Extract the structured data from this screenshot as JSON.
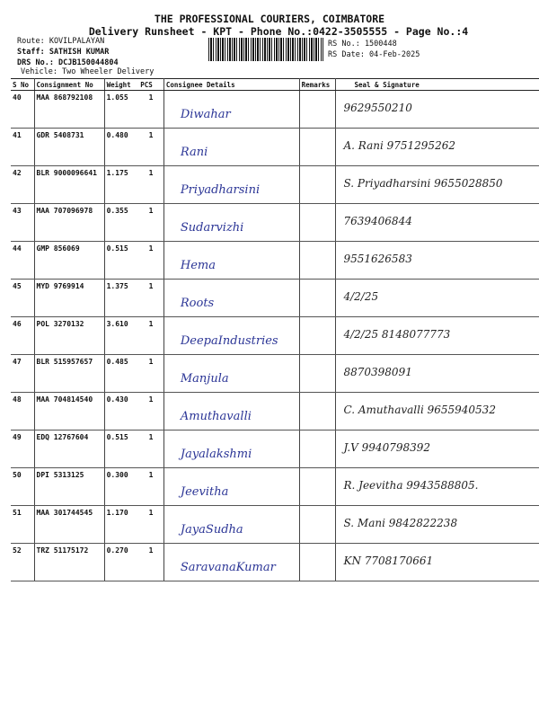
{
  "header": {
    "title": "THE PROFESSIONAL COURIERS, COIMBATORE",
    "subtitle": "Delivery Runsheet - KPT - Phone No.:0422-3505555 - Page No.:4",
    "route": "Route: KOVILPALAYAN",
    "staff": "Staff: SATHISH KUMAR",
    "drs_no": "DRS No.: DCJB150044804",
    "vehicle": "Vehicle: Two Wheeler Delivery",
    "rs_no": "RS No.: 1500448",
    "rs_date": "RS Date: 04-Feb-2025"
  },
  "table": {
    "columns": [
      "S No",
      "Consignment No",
      "Weight",
      "PCS",
      "Consignee Details",
      "Remarks",
      "Seal & Signature"
    ],
    "rows": [
      {
        "sno": "40",
        "cno": "MAA 868792108",
        "weight": "1.055",
        "pcs": "1",
        "consignee": "Diwahar",
        "signature": "9629550210"
      },
      {
        "sno": "41",
        "cno": "GDR 5408731",
        "weight": "0.480",
        "pcs": "1",
        "consignee": "Rani",
        "signature": "A. Rani 9751295262"
      },
      {
        "sno": "42",
        "cno": "BLR 9000096641",
        "weight": "1.175",
        "pcs": "1",
        "consignee": "Priyadharsini",
        "signature": "S. Priyadharsini 9655028850"
      },
      {
        "sno": "43",
        "cno": "MAA 707096978",
        "weight": "0.355",
        "pcs": "1",
        "consignee": "Sudarvizhi",
        "signature": "7639406844"
      },
      {
        "sno": "44",
        "cno": "GMP 856069",
        "weight": "0.515",
        "pcs": "1",
        "consignee": "Hema",
        "signature": "9551626583"
      },
      {
        "sno": "45",
        "cno": "MYD 9769914",
        "weight": "1.375",
        "pcs": "1",
        "consignee": "Roots",
        "signature": "4/2/25"
      },
      {
        "sno": "46",
        "cno": "POL 3270132",
        "weight": "3.610",
        "pcs": "1",
        "consignee": "DeepaIndustries",
        "signature": "4/2/25 8148077773"
      },
      {
        "sno": "47",
        "cno": "BLR 515957657",
        "weight": "0.485",
        "pcs": "1",
        "consignee": "Manjula",
        "signature": "8870398091"
      },
      {
        "sno": "48",
        "cno": "MAA 704814540",
        "weight": "0.430",
        "pcs": "1",
        "consignee": "Amuthavalli",
        "signature": "C. Amuthavalli 9655940532"
      },
      {
        "sno": "49",
        "cno": "EDQ 12767604",
        "weight": "0.515",
        "pcs": "1",
        "consignee": "Jayalakshmi",
        "signature": "J.V 9940798392"
      },
      {
        "sno": "50",
        "cno": "DPI 5313125",
        "weight": "0.300",
        "pcs": "1",
        "consignee": "Jeevitha",
        "signature": "R. Jeevitha 9943588805."
      },
      {
        "sno": "51",
        "cno": "MAA 301744545",
        "weight": "1.170",
        "pcs": "1",
        "consignee": "JayaSudha",
        "signature": "S. Mani 9842822238"
      },
      {
        "sno": "52",
        "cno": "TRZ 51175172",
        "weight": "0.270",
        "pcs": "1",
        "consignee": "SaravanaKumar",
        "signature": "KN 7708170661"
      }
    ]
  }
}
